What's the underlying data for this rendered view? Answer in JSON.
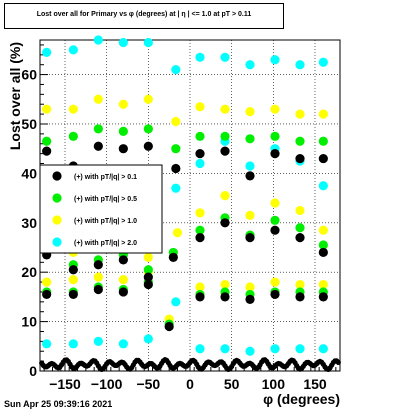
{
  "title": "Lost over all for Primary vs φ (degrees) at | η | <= 1.0 at pT > 0.11",
  "timestamp": "Sun Apr 25 09:39:16 2021",
  "colors": {
    "black": "#000000",
    "green": "#00ee00",
    "yellow": "#ffff00",
    "cyan": "#00ffff"
  },
  "chart_data": {
    "type": "scatter",
    "title": "Lost over all for Primary vs φ (degrees) at | η | <= 1.0 at pT > 0.11",
    "xlabel": "φ (degrees)",
    "ylabel": "Lost over all (%)",
    "xlim": [
      -180,
      180
    ],
    "ylim": [
      0,
      67
    ],
    "xticks": [
      -150,
      -100,
      -50,
      0,
      50,
      100,
      150
    ],
    "yticks": [
      0,
      10,
      20,
      30,
      40,
      50,
      60
    ],
    "grid": true,
    "legend_position": "middle-left",
    "series": [
      {
        "name": "(+) with pT/|q| > 0.1",
        "color": "#000000",
        "points": [
          [
            -172,
            44.5
          ],
          [
            -140,
            41.5
          ],
          [
            -110,
            45.5
          ],
          [
            -80,
            45.0
          ],
          [
            -50,
            45.5
          ],
          [
            -17,
            41.0
          ],
          [
            12,
            44.0
          ],
          [
            42,
            44.5
          ],
          [
            72,
            39.5
          ],
          [
            102,
            44.0
          ],
          [
            132,
            43.0
          ],
          [
            160,
            43.0
          ],
          [
            -172,
            23.5
          ],
          [
            -140,
            20.5
          ],
          [
            -110,
            21.5
          ],
          [
            -80,
            22.5
          ],
          [
            -50,
            19.0
          ],
          [
            -20,
            23.0
          ],
          [
            12,
            27.0
          ],
          [
            42,
            30.0
          ],
          [
            72,
            27.0
          ],
          [
            102,
            28.5
          ],
          [
            132,
            27.0
          ],
          [
            160,
            24.0
          ],
          [
            -172,
            15.5
          ],
          [
            -140,
            15.5
          ],
          [
            -110,
            16.5
          ],
          [
            -80,
            16.0
          ],
          [
            -50,
            17.5
          ],
          [
            -25,
            9.0
          ],
          [
            12,
            15.0
          ],
          [
            42,
            15.0
          ],
          [
            72,
            14.5
          ],
          [
            102,
            15.5
          ],
          [
            132,
            15.0
          ],
          [
            160,
            15.0
          ]
        ]
      },
      {
        "name": "(+) with pT/|q| > 0.5",
        "color": "#00ee00",
        "points": [
          [
            -172,
            46.5
          ],
          [
            -140,
            47.5
          ],
          [
            -110,
            49.0
          ],
          [
            -80,
            48.5
          ],
          [
            -50,
            49.0
          ],
          [
            -17,
            45.0
          ],
          [
            12,
            47.5
          ],
          [
            42,
            47.5
          ],
          [
            72,
            47.0
          ],
          [
            102,
            47.5
          ],
          [
            132,
            46.5
          ],
          [
            160,
            46.5
          ],
          [
            -172,
            25.0
          ],
          [
            -140,
            21.5
          ],
          [
            -110,
            22.5
          ],
          [
            -80,
            23.5
          ],
          [
            -50,
            20.5
          ],
          [
            -20,
            24.0
          ],
          [
            12,
            28.5
          ],
          [
            42,
            31.0
          ],
          [
            72,
            27.5
          ],
          [
            102,
            30.5
          ],
          [
            132,
            29.0
          ],
          [
            160,
            25.5
          ],
          [
            -172,
            16.0
          ],
          [
            -140,
            16.0
          ],
          [
            -110,
            17.0
          ],
          [
            -80,
            16.5
          ],
          [
            -50,
            18.0
          ],
          [
            -25,
            9.5
          ],
          [
            12,
            15.5
          ],
          [
            42,
            16.0
          ],
          [
            72,
            15.5
          ],
          [
            102,
            16.0
          ],
          [
            132,
            16.0
          ],
          [
            160,
            16.0
          ]
        ]
      },
      {
        "name": "(+) with pT/|q| > 1.0",
        "color": "#ffff00",
        "points": [
          [
            -172,
            53.0
          ],
          [
            -140,
            53.0
          ],
          [
            -110,
            55.0
          ],
          [
            -80,
            54.0
          ],
          [
            -50,
            55.0
          ],
          [
            -17,
            50.5
          ],
          [
            12,
            53.5
          ],
          [
            42,
            53.0
          ],
          [
            72,
            52.5
          ],
          [
            102,
            53.0
          ],
          [
            132,
            52.0
          ],
          [
            160,
            52.0
          ],
          [
            -172,
            27.5
          ],
          [
            -140,
            24.0
          ],
          [
            -110,
            25.0
          ],
          [
            -80,
            26.0
          ],
          [
            -50,
            23.0
          ],
          [
            -15,
            28.0
          ],
          [
            12,
            32.0
          ],
          [
            42,
            35.5
          ],
          [
            72,
            31.5
          ],
          [
            102,
            34.0
          ],
          [
            132,
            32.5
          ],
          [
            160,
            28.5
          ],
          [
            -172,
            18.0
          ],
          [
            -140,
            18.5
          ],
          [
            -110,
            19.0
          ],
          [
            -80,
            18.5
          ],
          [
            -50,
            20.0
          ],
          [
            -25,
            10.5
          ],
          [
            12,
            17.0
          ],
          [
            42,
            17.5
          ],
          [
            72,
            17.0
          ],
          [
            102,
            18.0
          ],
          [
            132,
            17.5
          ],
          [
            160,
            17.5
          ]
        ]
      },
      {
        "name": "(+) with pT/|q| > 2.0",
        "color": "#00ffff",
        "points": [
          [
            -172,
            64.5
          ],
          [
            -140,
            65.0
          ],
          [
            -110,
            67.0
          ],
          [
            -80,
            66.5
          ],
          [
            -50,
            66.5
          ],
          [
            -17,
            61.0
          ],
          [
            12,
            63.5
          ],
          [
            42,
            63.5
          ],
          [
            72,
            62.0
          ],
          [
            102,
            63.0
          ],
          [
            132,
            62.0
          ],
          [
            160,
            62.5
          ],
          [
            -172,
            28.5
          ],
          [
            -140,
            25.5
          ],
          [
            -110,
            27.0
          ],
          [
            -80,
            27.5
          ],
          [
            -50,
            25.0
          ],
          [
            -17,
            37.0
          ],
          [
            12,
            42.0
          ],
          [
            42,
            46.5
          ],
          [
            72,
            41.5
          ],
          [
            102,
            45.0
          ],
          [
            132,
            42.5
          ],
          [
            160,
            37.5
          ],
          [
            -172,
            5.5
          ],
          [
            -140,
            5.5
          ],
          [
            -110,
            6.0
          ],
          [
            -80,
            5.5
          ],
          [
            -50,
            6.5
          ],
          [
            -17,
            14.0
          ],
          [
            12,
            4.5
          ],
          [
            42,
            4.5
          ],
          [
            72,
            4.0
          ],
          [
            102,
            4.5
          ],
          [
            132,
            4.5
          ],
          [
            160,
            4.5
          ]
        ]
      }
    ],
    "baseline_band": {
      "color": "#000000",
      "approx_level": 1.3,
      "note_points": [
        -172,
        -140,
        -110,
        -80,
        -50,
        -20,
        12,
        42,
        72,
        102,
        132,
        160
      ]
    }
  }
}
